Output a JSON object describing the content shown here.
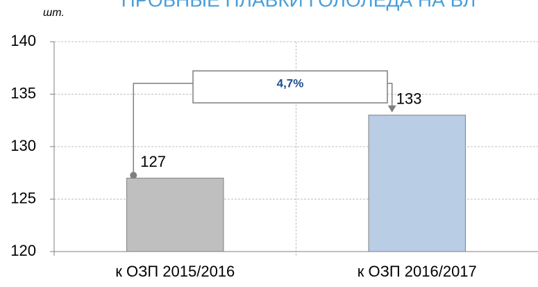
{
  "chart_data": {
    "type": "bar",
    "title": "ПРОБНЫЕ ПЛАВКИ ГОЛОЛЕДА НА ВЛ",
    "y_axis_label": "шт.",
    "categories": [
      "к ОЗП 2015/2016",
      "к ОЗП 2016/2017"
    ],
    "values": [
      127,
      133
    ],
    "colors": [
      "#bfbfbf",
      "#b9cde5"
    ],
    "annotation": "4,7%",
    "ylim": [
      120,
      140
    ],
    "yticks": [
      120,
      125,
      130,
      135,
      140
    ],
    "grid": true
  }
}
